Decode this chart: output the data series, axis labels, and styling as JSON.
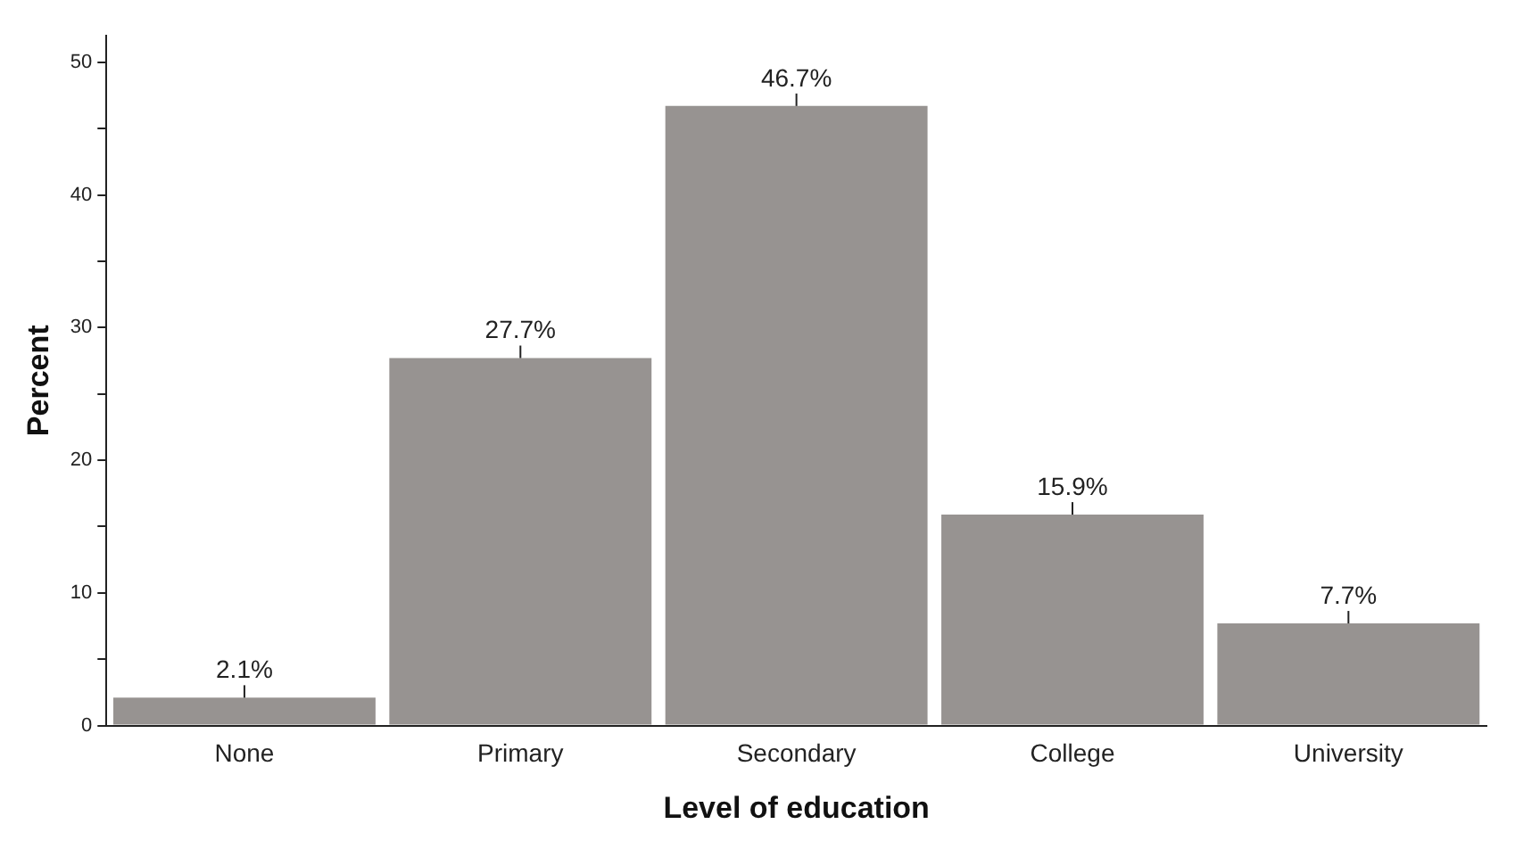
{
  "chart_data": {
    "type": "bar",
    "xlabel": "Level of education",
    "ylabel": "Percent",
    "categories": [
      "None",
      "Primary",
      "Secondary",
      "College",
      "University"
    ],
    "values": [
      2.1,
      27.7,
      46.7,
      15.9,
      7.7
    ],
    "value_labels": [
      "2.1%",
      "27.7%",
      "46.7%",
      "15.9%",
      "7.7%"
    ],
    "color": "#979391",
    "ylim": [
      0,
      52
    ],
    "yticks": [
      0,
      {
        "value": 5,
        "label": null
      },
      10,
      {
        "value": 15,
        "label": null
      },
      20,
      {
        "value": 25,
        "label": null
      },
      30,
      {
        "value": 35,
        "label": null
      },
      40,
      {
        "value": 45,
        "label": null
      },
      50
    ],
    "grid": false,
    "legend": false
  }
}
